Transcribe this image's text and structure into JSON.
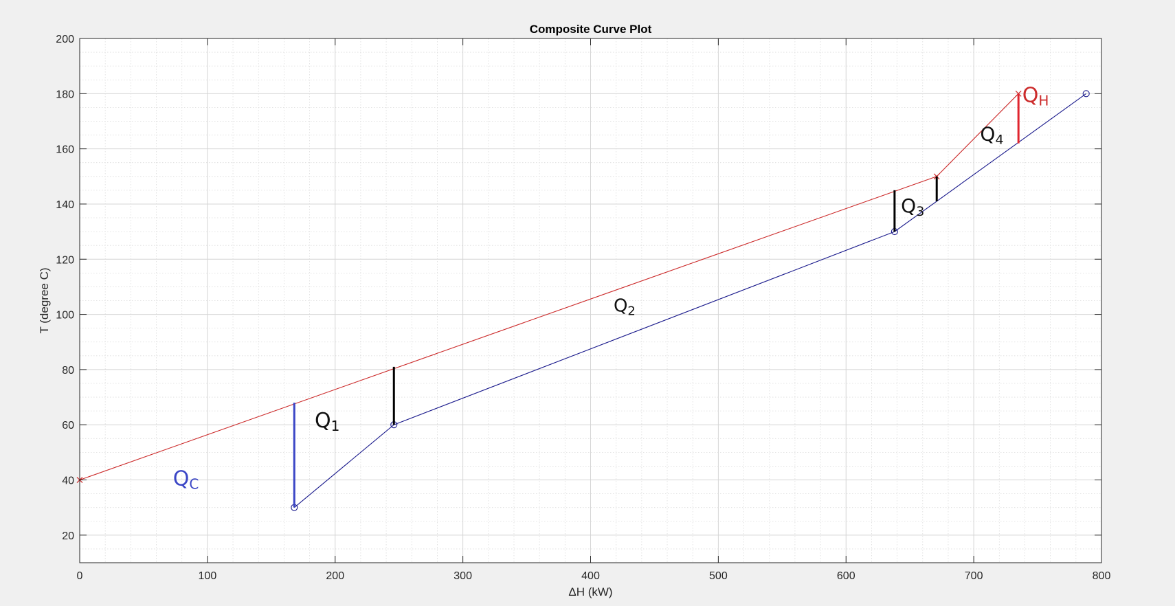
{
  "chart_data": {
    "type": "line",
    "title": "Composite Curve Plot",
    "xlabel": "ΔH (kW)",
    "ylabel": "T (degree C)",
    "xlim": [
      0,
      800
    ],
    "ylim": [
      10,
      200
    ],
    "x_ticks": [
      0,
      100,
      200,
      300,
      400,
      500,
      600,
      700,
      800
    ],
    "y_ticks": [
      20,
      40,
      60,
      80,
      100,
      120,
      140,
      160,
      180,
      200
    ],
    "grid": true,
    "minor_grid": true,
    "legend": "none",
    "series": [
      {
        "key": "hot",
        "color": "#cc2b2b",
        "marker": "x",
        "x": [
          0,
          671,
          735
        ],
        "y": [
          40,
          150,
          180
        ]
      },
      {
        "key": "cold",
        "color": "#1a1a8c",
        "marker": "o",
        "x": [
          168,
          246,
          638,
          788
        ],
        "y": [
          30,
          60,
          130,
          180
        ]
      }
    ],
    "annotations": [
      {
        "key": "qc",
        "main": "Q",
        "sub": "C",
        "x": 73,
        "y": 38,
        "color": "#3b46c6",
        "size": 30
      },
      {
        "key": "q1",
        "main": "Q",
        "sub": "1",
        "x": 184,
        "y": 59,
        "color": "#111111",
        "size": 30
      },
      {
        "key": "q2",
        "main": "Q",
        "sub": "2",
        "x": 418,
        "y": 101,
        "color": "#111111",
        "size": 26
      },
      {
        "key": "q3",
        "main": "Q",
        "sub": "3",
        "x": 643,
        "y": 137,
        "color": "#111111",
        "size": 28
      },
      {
        "key": "q4",
        "main": "Q",
        "sub": "4",
        "x": 705,
        "y": 163,
        "color": "#111111",
        "size": 28
      },
      {
        "key": "qh",
        "main": "Q",
        "sub": "H",
        "x": 738,
        "y": 177,
        "color": "#cc2b2b",
        "size": 30
      }
    ],
    "vertical_markers": [
      {
        "key": "qc-bar",
        "x": 168,
        "y1": 30,
        "y2": 68,
        "color": "#3b46c6"
      },
      {
        "key": "q1-bar",
        "x": 246,
        "y1": 60,
        "y2": 81,
        "color": "#000000"
      },
      {
        "key": "q3-bar",
        "x": 638,
        "y1": 130,
        "y2": 145,
        "color": "#000000"
      },
      {
        "key": "q4-bar",
        "x": 671,
        "y1": 141,
        "y2": 150,
        "color": "#000000"
      },
      {
        "key": "qh-bar",
        "x": 735,
        "y1": 162,
        "y2": 180,
        "color": "#e0242e"
      }
    ]
  }
}
